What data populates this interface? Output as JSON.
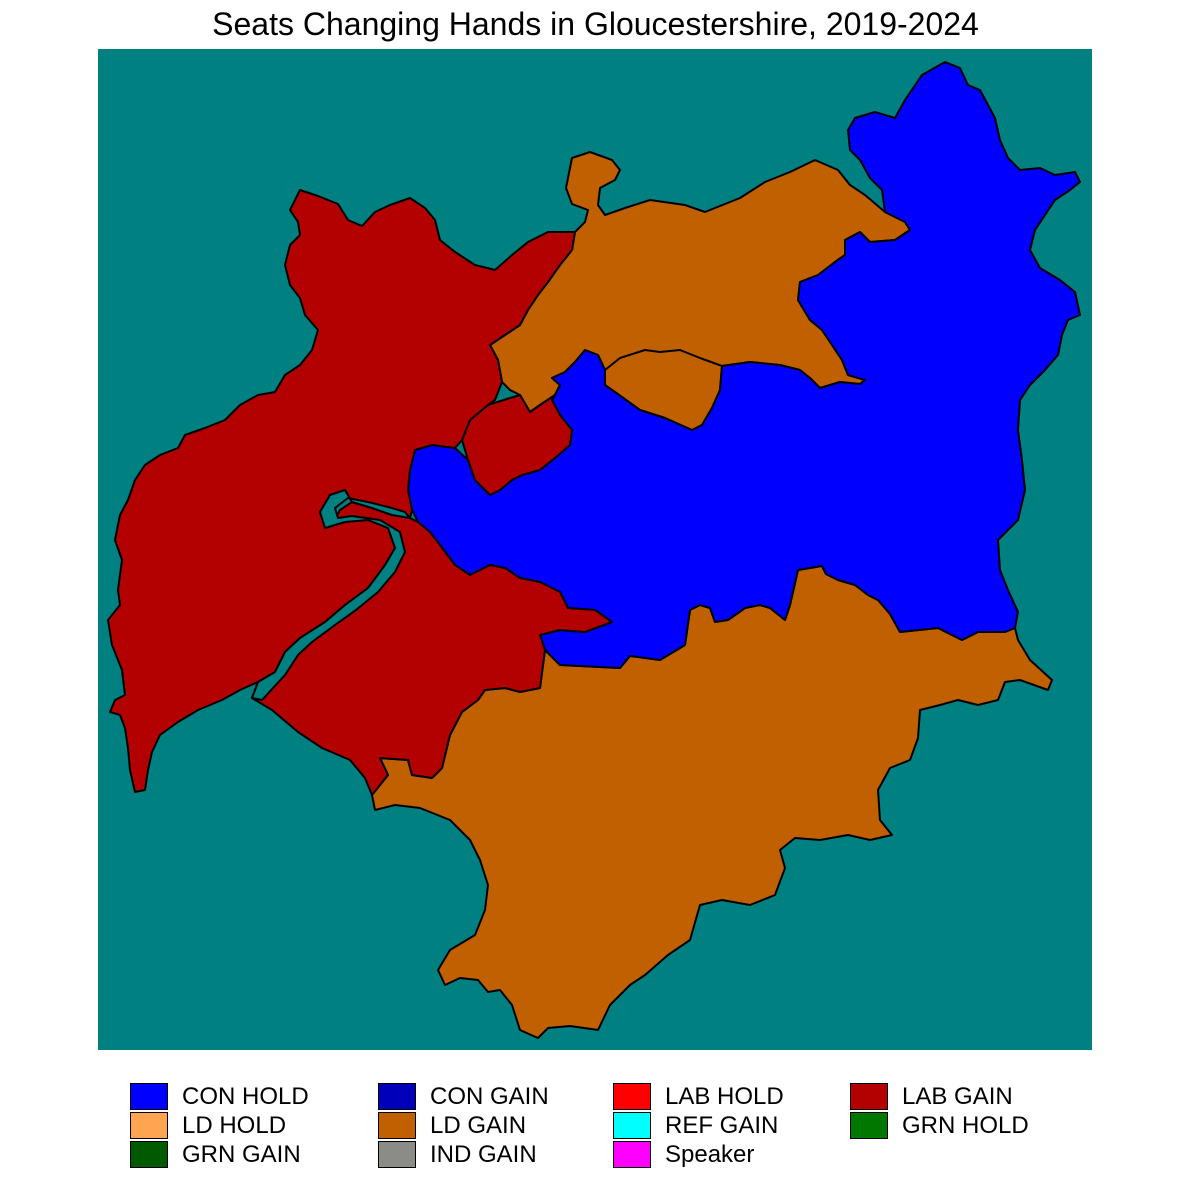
{
  "map": {
    "title": "Seats Changing Hands in Gloucestershire, 2019-2024",
    "background_color": "#008080",
    "outline_color": "#000000",
    "regions": [
      {
        "id": "lab-gain-west",
        "result": "LAB GAIN",
        "color": "#B30000"
      },
      {
        "id": "lab-gain-south",
        "result": "LAB GAIN",
        "color": "#B30000"
      },
      {
        "id": "lab-gain-center",
        "result": "LAB GAIN",
        "color": "#B30000"
      },
      {
        "id": "ld-gain-north",
        "result": "LD GAIN",
        "color": "#C06000"
      },
      {
        "id": "ld-gain-center-inset",
        "result": "LD GAIN",
        "color": "#C06000"
      },
      {
        "id": "ld-gain-south",
        "result": "LD GAIN",
        "color": "#C06000"
      },
      {
        "id": "con-hold-east",
        "result": "CON HOLD",
        "color": "#0000FF"
      }
    ]
  },
  "legend": {
    "items": [
      {
        "label": "CON HOLD",
        "color": "#0000FF"
      },
      {
        "label": "LD HOLD",
        "color": "#FFA552"
      },
      {
        "label": "GRN GAIN",
        "color": "#005A00"
      },
      {
        "label": "CON GAIN",
        "color": "#0000BB"
      },
      {
        "label": "LD GAIN",
        "color": "#C06000"
      },
      {
        "label": "IND GAIN",
        "color": "#8C8C87"
      },
      {
        "label": "LAB HOLD",
        "color": "#FF0000"
      },
      {
        "label": "REF GAIN",
        "color": "#00FFFF"
      },
      {
        "label": "Speaker",
        "color": "#FF00FF"
      },
      {
        "label": "LAB GAIN",
        "color": "#B30000"
      },
      {
        "label": "GRN HOLD",
        "color": "#007800"
      }
    ]
  }
}
